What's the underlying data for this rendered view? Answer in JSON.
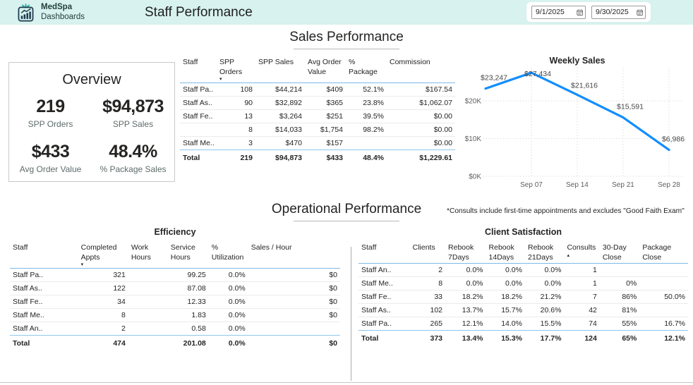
{
  "header": {
    "logo_line1": "MedSpa",
    "logo_line2": "Dashboards",
    "title": "Staff Performance",
    "date_from": "9/1/2025",
    "date_to": "9/30/2025"
  },
  "colors": {
    "header_bg": "#d7f2ef",
    "accent_teal": "#2fb3a4",
    "chart_line": "#118DFF",
    "table_header_underline": "#7cb9e8",
    "text_main": "#252423",
    "text_secondary": "#605e5c"
  },
  "sales_section": {
    "title": "Sales Performance",
    "overview": {
      "title": "Overview",
      "kpis": [
        {
          "value": "219",
          "label": "SPP Orders"
        },
        {
          "value": "$94,873",
          "label": "SPP Sales"
        },
        {
          "value": "$433",
          "label": "Avg Order Value"
        },
        {
          "value": "48.4%",
          "label": "% Package Sales"
        }
      ]
    },
    "table": {
      "columns": [
        "Staff",
        "SPP Orders",
        "SPP Sales",
        "Avg Order Value",
        "% Package",
        "Commission"
      ],
      "sort": {
        "column": 1,
        "direction": "desc"
      },
      "rows": [
        [
          "Staff Pa..",
          "108",
          "$44,214",
          "$409",
          "52.1%",
          "$167.54"
        ],
        [
          "Staff As..",
          "90",
          "$32,892",
          "$365",
          "23.8%",
          "$1,062.07"
        ],
        [
          "Staff Fe..",
          "13",
          "$3,264",
          "$251",
          "39.5%",
          "$0.00"
        ],
        [
          "",
          "8",
          "$14,033",
          "$1,754",
          "98.2%",
          "$0.00"
        ],
        [
          "Staff Me..",
          "3",
          "$470",
          "$157",
          "",
          "$0.00"
        ]
      ],
      "total": [
        "Total",
        "219",
        "$94,873",
        "$433",
        "48.4%",
        "$1,229.61"
      ]
    }
  },
  "chart_data": {
    "type": "line",
    "title": "Weekly Sales",
    "x_tick_labels": [
      "Sep 07",
      "Sep 14",
      "Sep 21",
      "Sep 28"
    ],
    "values": [
      23247,
      27434,
      21616,
      15591,
      6986
    ],
    "data_labels": [
      "$23,247",
      "$27,434",
      "$21,616",
      "$15,591",
      "$6,986"
    ],
    "y_tick_labels": [
      "$0K",
      "$10K",
      "$20K"
    ],
    "y_tick_values": [
      0,
      10000,
      20000
    ],
    "ylim": [
      0,
      30000
    ],
    "grid": "dotted",
    "legend": "none"
  },
  "operational_section": {
    "title": "Operational Performance",
    "note": "*Consults include first-time appointments and excludes \"Good Faith Exam\"",
    "efficiency": {
      "title": "Efficiency",
      "columns": [
        "Staff",
        "Completed Appts",
        "Work Hours",
        "Service Hours",
        "% Utilization",
        "Sales / Hour"
      ],
      "sort": {
        "column": 1,
        "direction": "desc"
      },
      "rows": [
        [
          "Staff Pa..",
          "321",
          "",
          "99.25",
          "0.0%",
          "$0"
        ],
        [
          "Staff As..",
          "122",
          "",
          "87.08",
          "0.0%",
          "$0"
        ],
        [
          "Staff Fe..",
          "34",
          "",
          "12.33",
          "0.0%",
          "$0"
        ],
        [
          "Staff Me..",
          "8",
          "",
          "1.83",
          "0.0%",
          "$0"
        ],
        [
          "Staff An..",
          "2",
          "",
          "0.58",
          "0.0%",
          ""
        ]
      ],
      "total": [
        "Total",
        "474",
        "",
        "201.08",
        "0.0%",
        "$0"
      ]
    },
    "client_satisfaction": {
      "title": "Client Satisfaction",
      "columns": [
        "Staff",
        "Clients",
        "Rebook 7Days",
        "Rebook 14Days",
        "Rebook 21Days",
        "Consults",
        "30-Day Close",
        "Package Close"
      ],
      "sort": {
        "column": 5,
        "direction": "asc"
      },
      "rows": [
        [
          "Staff An..",
          "2",
          "0.0%",
          "0.0%",
          "0.0%",
          "1",
          "",
          ""
        ],
        [
          "Staff Me..",
          "8",
          "0.0%",
          "0.0%",
          "0.0%",
          "1",
          "0%",
          ""
        ],
        [
          "Staff Fe..",
          "33",
          "18.2%",
          "18.2%",
          "21.2%",
          "7",
          "86%",
          "50.0%"
        ],
        [
          "Staff As..",
          "102",
          "13.7%",
          "15.7%",
          "20.6%",
          "42",
          "81%",
          ""
        ],
        [
          "Staff Pa..",
          "265",
          "12.1%",
          "14.0%",
          "15.5%",
          "74",
          "55%",
          "16.7%"
        ]
      ],
      "total": [
        "Total",
        "373",
        "13.4%",
        "15.3%",
        "17.7%",
        "124",
        "65%",
        "12.1%"
      ]
    }
  }
}
